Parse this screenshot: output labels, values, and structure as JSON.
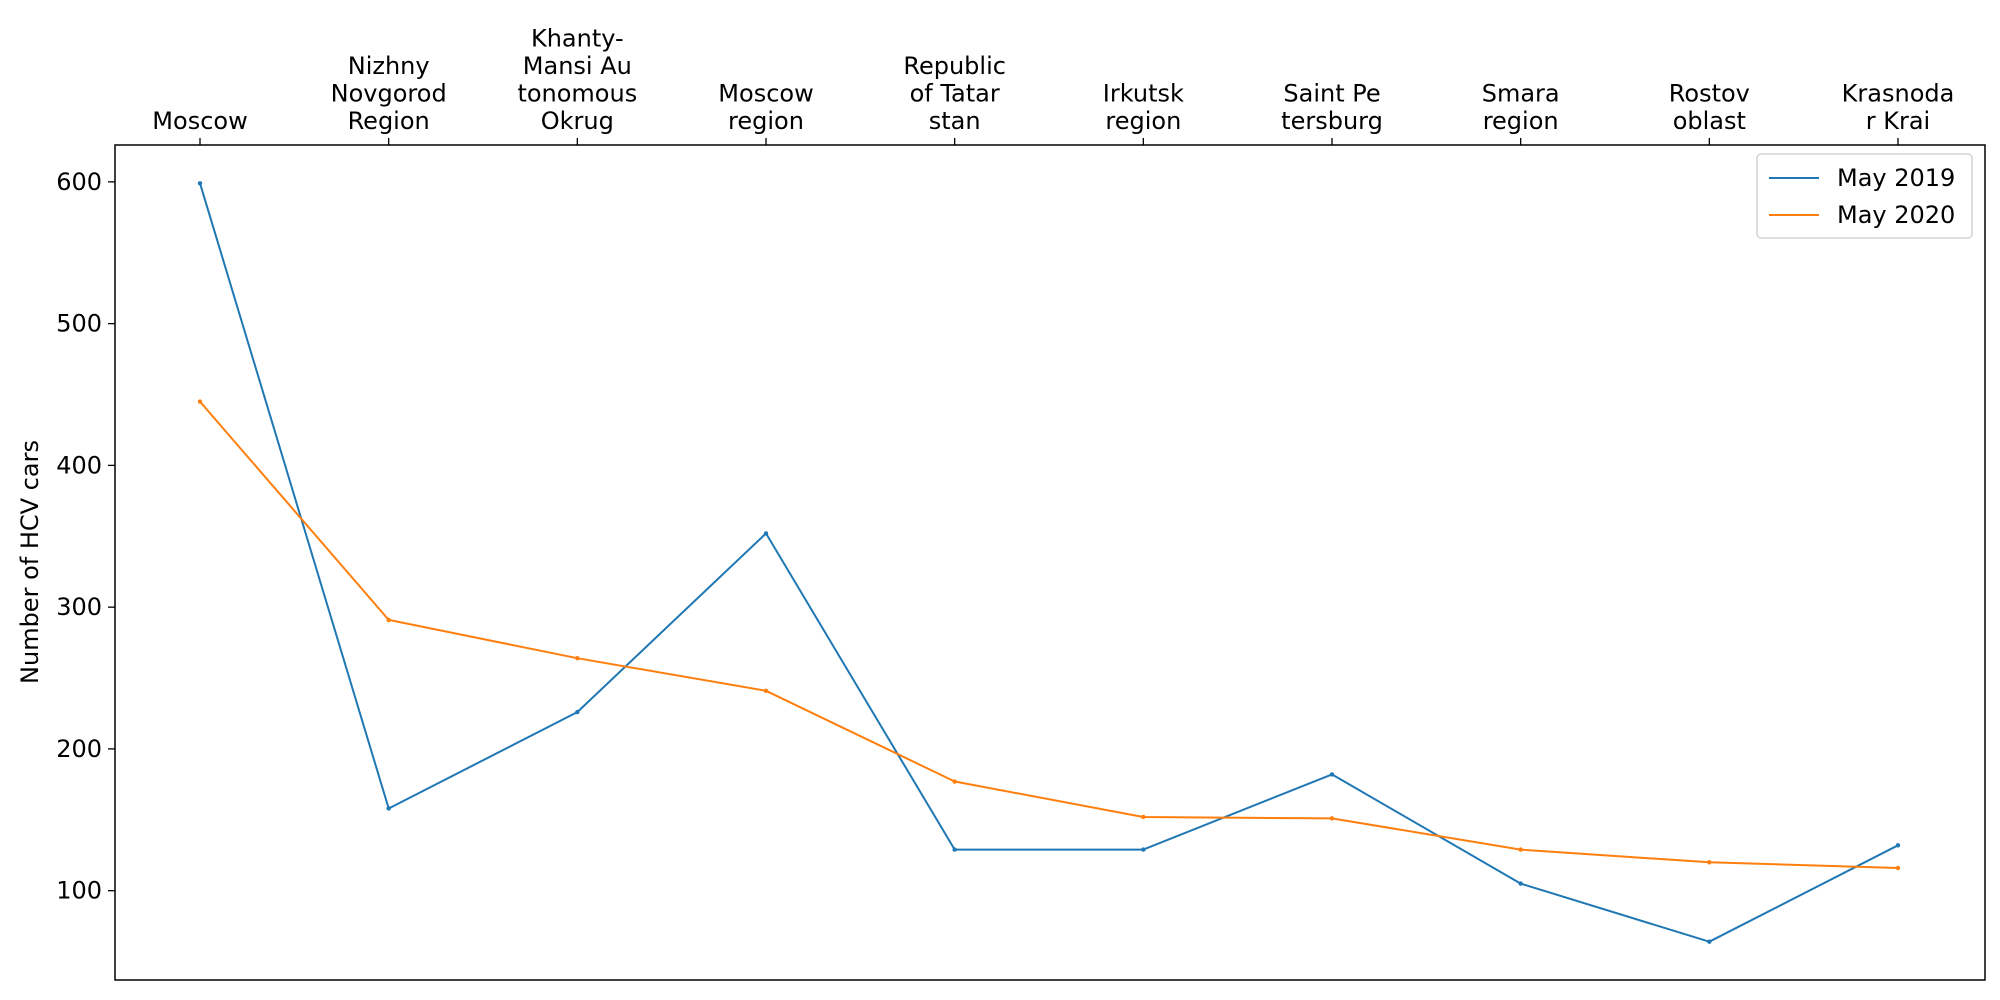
{
  "chart_data": {
    "type": "line",
    "ylabel": "Number of HCV cars",
    "categories": [
      [
        "Moscow"
      ],
      [
        "Nizhny",
        "Novgorod",
        "Region"
      ],
      [
        "Khanty-",
        "Mansi Au",
        "tonomous",
        "Okrug"
      ],
      [
        "Moscow",
        "region"
      ],
      [
        "Republic",
        "of Tatar",
        "stan"
      ],
      [
        "Irkutsk",
        "region"
      ],
      [
        "Saint Pe",
        "tersburg"
      ],
      [
        "Smara",
        "region"
      ],
      [
        "Rostov",
        "oblast"
      ],
      [
        "Krasnoda",
        "r Krai"
      ]
    ],
    "ylim": [
      37,
      626
    ],
    "yticks": [
      100,
      200,
      300,
      400,
      500,
      600
    ],
    "x_axis_position": "top",
    "grid": false,
    "legend_position": "top-right",
    "series": [
      {
        "name": "May 2019",
        "color": "#1f77b4",
        "values": [
          599,
          158,
          226,
          352,
          129,
          129,
          182,
          105,
          64,
          132
        ]
      },
      {
        "name": "May 2020",
        "color": "#ff7f0e",
        "values": [
          445,
          291,
          264,
          241,
          177,
          152,
          151,
          129,
          120,
          116
        ]
      }
    ]
  }
}
